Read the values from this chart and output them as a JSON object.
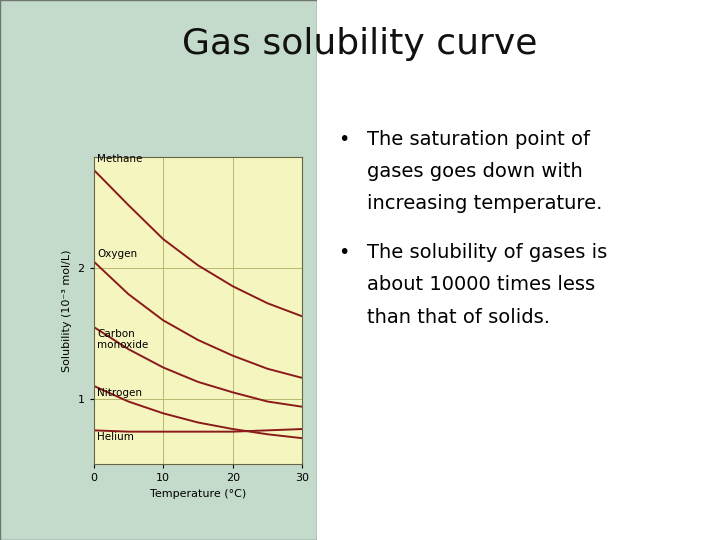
{
  "title": "Gas solubility curve",
  "title_fontsize": 26,
  "background_color": "#ffffff",
  "chart_bg": "#f5f5c0",
  "green_panel_color": "#8ab898",
  "green_panel_alpha": 0.5,
  "bullet1_line1": "The saturation point of",
  "bullet1_line2": "gases goes down with",
  "bullet1_line3": "increasing temperature.",
  "bullet2_line1": "The solubility of gases is",
  "bullet2_line2": "about 10000 times less",
  "bullet2_line3": "than that of solids.",
  "bullet_fontsize": 14,
  "xlabel": "Temperature (°C)",
  "ylabel": "Solubility (10⁻³ mol/L)",
  "xlim": [
    0,
    30
  ],
  "ylim": [
    0.5,
    2.85
  ],
  "yticks": [
    1.0,
    2.0
  ],
  "xticks": [
    0,
    10,
    20,
    30
  ],
  "curve_color": "#8b1a1a",
  "methane_x": [
    0,
    5,
    10,
    15,
    20,
    25,
    30
  ],
  "methane_y": [
    2.75,
    2.48,
    2.22,
    2.02,
    1.86,
    1.73,
    1.63
  ],
  "oxygen_x": [
    0,
    5,
    10,
    15,
    20,
    25,
    30
  ],
  "oxygen_y": [
    2.05,
    1.8,
    1.6,
    1.45,
    1.33,
    1.23,
    1.16
  ],
  "co_x": [
    0,
    5,
    10,
    15,
    20,
    25,
    30
  ],
  "co_y": [
    1.55,
    1.38,
    1.24,
    1.13,
    1.05,
    0.98,
    0.94
  ],
  "nitrogen_x": [
    0,
    5,
    10,
    15,
    20,
    25,
    30
  ],
  "nitrogen_y": [
    1.1,
    0.98,
    0.89,
    0.82,
    0.77,
    0.73,
    0.7
  ],
  "helium_x": [
    0,
    5,
    10,
    15,
    20,
    25,
    30
  ],
  "helium_y": [
    0.76,
    0.75,
    0.75,
    0.75,
    0.75,
    0.76,
    0.77
  ],
  "grid_color": "#b8b870",
  "axis_label_fontsize": 8,
  "tick_fontsize": 8,
  "gas_label_fontsize": 7.5
}
